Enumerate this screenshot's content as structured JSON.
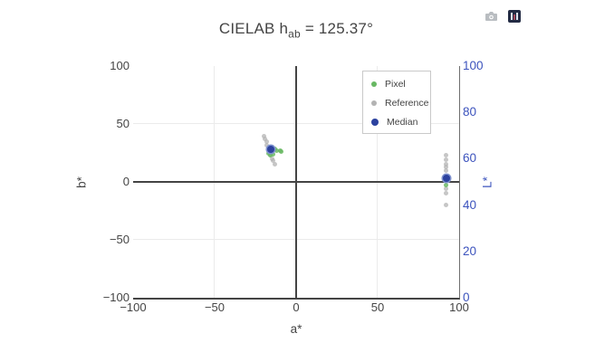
{
  "title": {
    "prefix": "CIELAB h",
    "sub": "ab",
    "suffix": " = 125.37°"
  },
  "modebar": {
    "icons": [
      "camera-download-icon",
      "plotly-logo-icon"
    ]
  },
  "legend": {
    "items": [
      {
        "label": "Pixel",
        "color": "#68b863",
        "size": 6
      },
      {
        "label": "Reference",
        "color": "#b3b3b3",
        "size": 6
      },
      {
        "label": "Median",
        "color": "#2c429f",
        "size": 8
      }
    ]
  },
  "axes": {
    "left": {
      "title": "b*",
      "color": "#444444",
      "tick_labels": [
        "100",
        "50",
        "0",
        "−50",
        "−100"
      ]
    },
    "bottom": {
      "title": "a*",
      "color": "#444444",
      "tick_labels": [
        "−100",
        "−50",
        "0",
        "50",
        "100"
      ]
    },
    "right": {
      "title": "L*",
      "color": "#3c53bd",
      "tick_labels": [
        "100",
        "80",
        "60",
        "40",
        "20",
        "0"
      ]
    }
  },
  "chart_data": {
    "type": "scatter",
    "title": "CIELAB h_ab = 125.37°",
    "xlabel": "a*",
    "ylabel_left": "b*",
    "ylabel_right": "L*",
    "xlim": [
      -100,
      100
    ],
    "ylim_left": [
      -100,
      100
    ],
    "ylim_right": [
      0,
      100
    ],
    "x_ticks": [
      -100,
      -50,
      0,
      50,
      100
    ],
    "y_ticks_left": [
      100,
      50,
      0,
      -50,
      -100
    ],
    "y_ticks_right": [
      0,
      20,
      40,
      60,
      80,
      100
    ],
    "grid": true,
    "legend_position": "inside-top-right",
    "series": [
      {
        "name": "Reference",
        "color": "#b3b3b3",
        "opacity": 0.75,
        "size": 5,
        "ab_points": [
          [
            -19.7,
            39.1
          ],
          [
            -18.9,
            37.5
          ],
          [
            -18.1,
            34.4
          ],
          [
            -18.3,
            31.3
          ],
          [
            -17.2,
            27.3
          ],
          [
            -16.1,
            23.4
          ],
          [
            -15.0,
            20.3
          ],
          [
            -13.9,
            18.0
          ],
          [
            -13.3,
            15.6
          ]
        ],
        "L_points": [
          [
            92.2,
            61.7
          ],
          [
            92.2,
            59.4
          ],
          [
            92.2,
            57.8
          ],
          [
            92.2,
            56.3
          ],
          [
            92.2,
            54.7
          ],
          [
            92.2,
            46.9
          ],
          [
            92.2,
            45.3
          ],
          [
            92.2,
            40.2
          ]
        ]
      },
      {
        "name": "Pixel",
        "color": "#68b863",
        "opacity": 0.85,
        "size": 5,
        "ab_points": [
          [
            -15.0,
            29.7
          ],
          [
            -13.1,
            28.5
          ],
          [
            -11.7,
            27.3
          ],
          [
            -9.7,
            26.9
          ],
          [
            -8.9,
            25.8
          ],
          [
            -16.7,
            25.0
          ],
          [
            -15.6,
            22.7
          ],
          [
            -13.9,
            24.2
          ]
        ],
        "L_points": [
          [
            92.2,
            48.8
          ]
        ]
      },
      {
        "name": "Median",
        "color": "#2c429f",
        "opacity": 1,
        "size": 8,
        "ring": "#8093cf",
        "ab_points": [
          [
            -15.8,
            28.5
          ]
        ],
        "L_points": [
          [
            92.2,
            51.6
          ]
        ]
      }
    ]
  }
}
